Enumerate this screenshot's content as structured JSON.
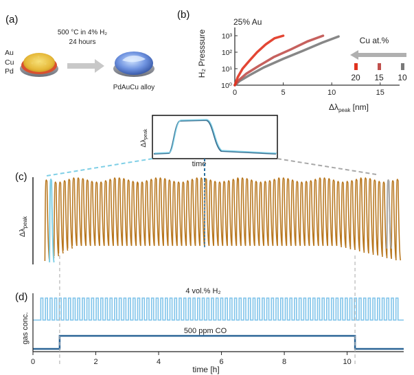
{
  "panel_labels": {
    "a": "(a)",
    "b": "(b)",
    "c": "(c)",
    "d": "(d)"
  },
  "panel_a": {
    "layer_labels": [
      "Au",
      "Cu",
      "Pd"
    ],
    "condition_line1": "500 °C in 4% H₂",
    "condition_line2": "24 hours",
    "product_label": "PdAuCu alloy"
  },
  "panel_b": {
    "inset_title": "25% Au",
    "ylabel": "H₂ Presssure",
    "xlabel_prefix": "Δλ",
    "xlabel_sub": "peak",
    "xlabel_unit": " [nm]",
    "legend_title": "Cu at.%",
    "legend_items": [
      "20",
      "15",
      "10"
    ]
  },
  "panel_c": {
    "inset_ylabel_prefix": "Δλ",
    "inset_ylabel_sub": "peak",
    "inset_xlabel": "time",
    "ylabel_prefix": "Δλ",
    "ylabel_sub": "peak"
  },
  "panel_d": {
    "h2_label": "4 vol.% H₂",
    "co_label": "500 ppm CO",
    "ylabel": "gas conc.",
    "xlabel": "time [h]"
  },
  "colors": {
    "orange_trace": "#b8771f",
    "cyan_trace": "#7fcfe6",
    "blue_dash": "#2a6f9e",
    "gray_trace": "#a8a8a8",
    "h2_pulse": "#7ec3ea",
    "co_line": "#2a6496",
    "red_20": "#e0321e",
    "red_15": "#c0504d",
    "gray_10": "#7a7a7a"
  },
  "chart_data": [
    {
      "panel": "b",
      "type": "line",
      "xlabel": "Δλpeak [nm]",
      "ylabel": "H₂ Presssure",
      "y_scale": "log",
      "xlim": [
        0,
        17
      ],
      "ylim": [
        1,
        1000
      ],
      "x_ticks": [
        0,
        5,
        10,
        15
      ],
      "y_ticks": [
        "10⁰",
        "10¹",
        "10²",
        "10³"
      ],
      "legend_title": "Cu at.%",
      "series": [
        {
          "name": "20",
          "x": [
            0,
            0.3,
            0.8,
            1.5,
            2.3,
            3.2,
            4.1,
            5.0
          ],
          "y": [
            1,
            3,
            10,
            30,
            100,
            300,
            700,
            1000
          ]
        },
        {
          "name": "15",
          "x": [
            0,
            0.4,
            1.2,
            2.5,
            4.0,
            5.8,
            7.5,
            9.1
          ],
          "y": [
            1,
            2,
            5,
            15,
            50,
            150,
            450,
            1000
          ]
        },
        {
          "name": "10",
          "x": [
            0,
            0.5,
            1.5,
            3.0,
            5.0,
            7.0,
            9.0,
            10.7
          ],
          "y": [
            1,
            1.8,
            4,
            12,
            40,
            120,
            380,
            900
          ]
        }
      ]
    },
    {
      "panel": "d",
      "type": "line",
      "xlabel": "time [h]",
      "ylabel": "gas conc.",
      "xlim": [
        0,
        11.8
      ],
      "x_ticks": [
        0,
        2,
        4,
        6,
        8,
        10
      ],
      "series": [
        {
          "name": "4 vol.% H₂",
          "pulse_start_h": 0.25,
          "pulse_end_h": 11.7,
          "pulse_count": 78
        },
        {
          "name": "500 ppm CO",
          "x": [
            0,
            0.85,
            0.85,
            10.25,
            10.25,
            11.8
          ],
          "y": [
            0,
            0,
            1,
            1,
            0,
            0
          ]
        }
      ],
      "dashed_markers_h": [
        0.85,
        10.25
      ]
    }
  ]
}
